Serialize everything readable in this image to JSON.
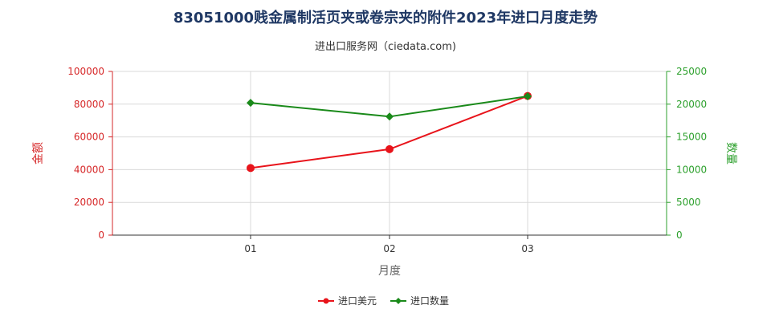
{
  "chart_data": {
    "type": "line",
    "title": "83051000贱金属制活页夹或卷宗夹的附件2023年进口月度走势",
    "subtitle": "进出口服务网（ciedata.com)",
    "xlabel": "月度",
    "ylabel_left": "金额",
    "ylabel_right": "数量",
    "categories": [
      "01",
      "02",
      "03"
    ],
    "y_left": {
      "lim": [
        0,
        100000
      ],
      "ticks": [
        "0",
        "20000",
        "40000",
        "60000",
        "80000",
        "100000"
      ]
    },
    "y_right": {
      "lim": [
        0,
        25000
      ],
      "ticks": [
        "0",
        "5000",
        "10000",
        "15000",
        "20000",
        "25000"
      ]
    },
    "series": [
      {
        "name": "进口美元",
        "axis": "left",
        "color": "#e8141b",
        "marker": "circle",
        "values": [
          41000,
          52500,
          85000
        ]
      },
      {
        "name": "进口数量",
        "axis": "right",
        "color": "#1a8a1a",
        "marker": "diamond",
        "values": [
          20200,
          18100,
          21200
        ]
      }
    ],
    "grid": true,
    "legend": "bottom-center"
  }
}
